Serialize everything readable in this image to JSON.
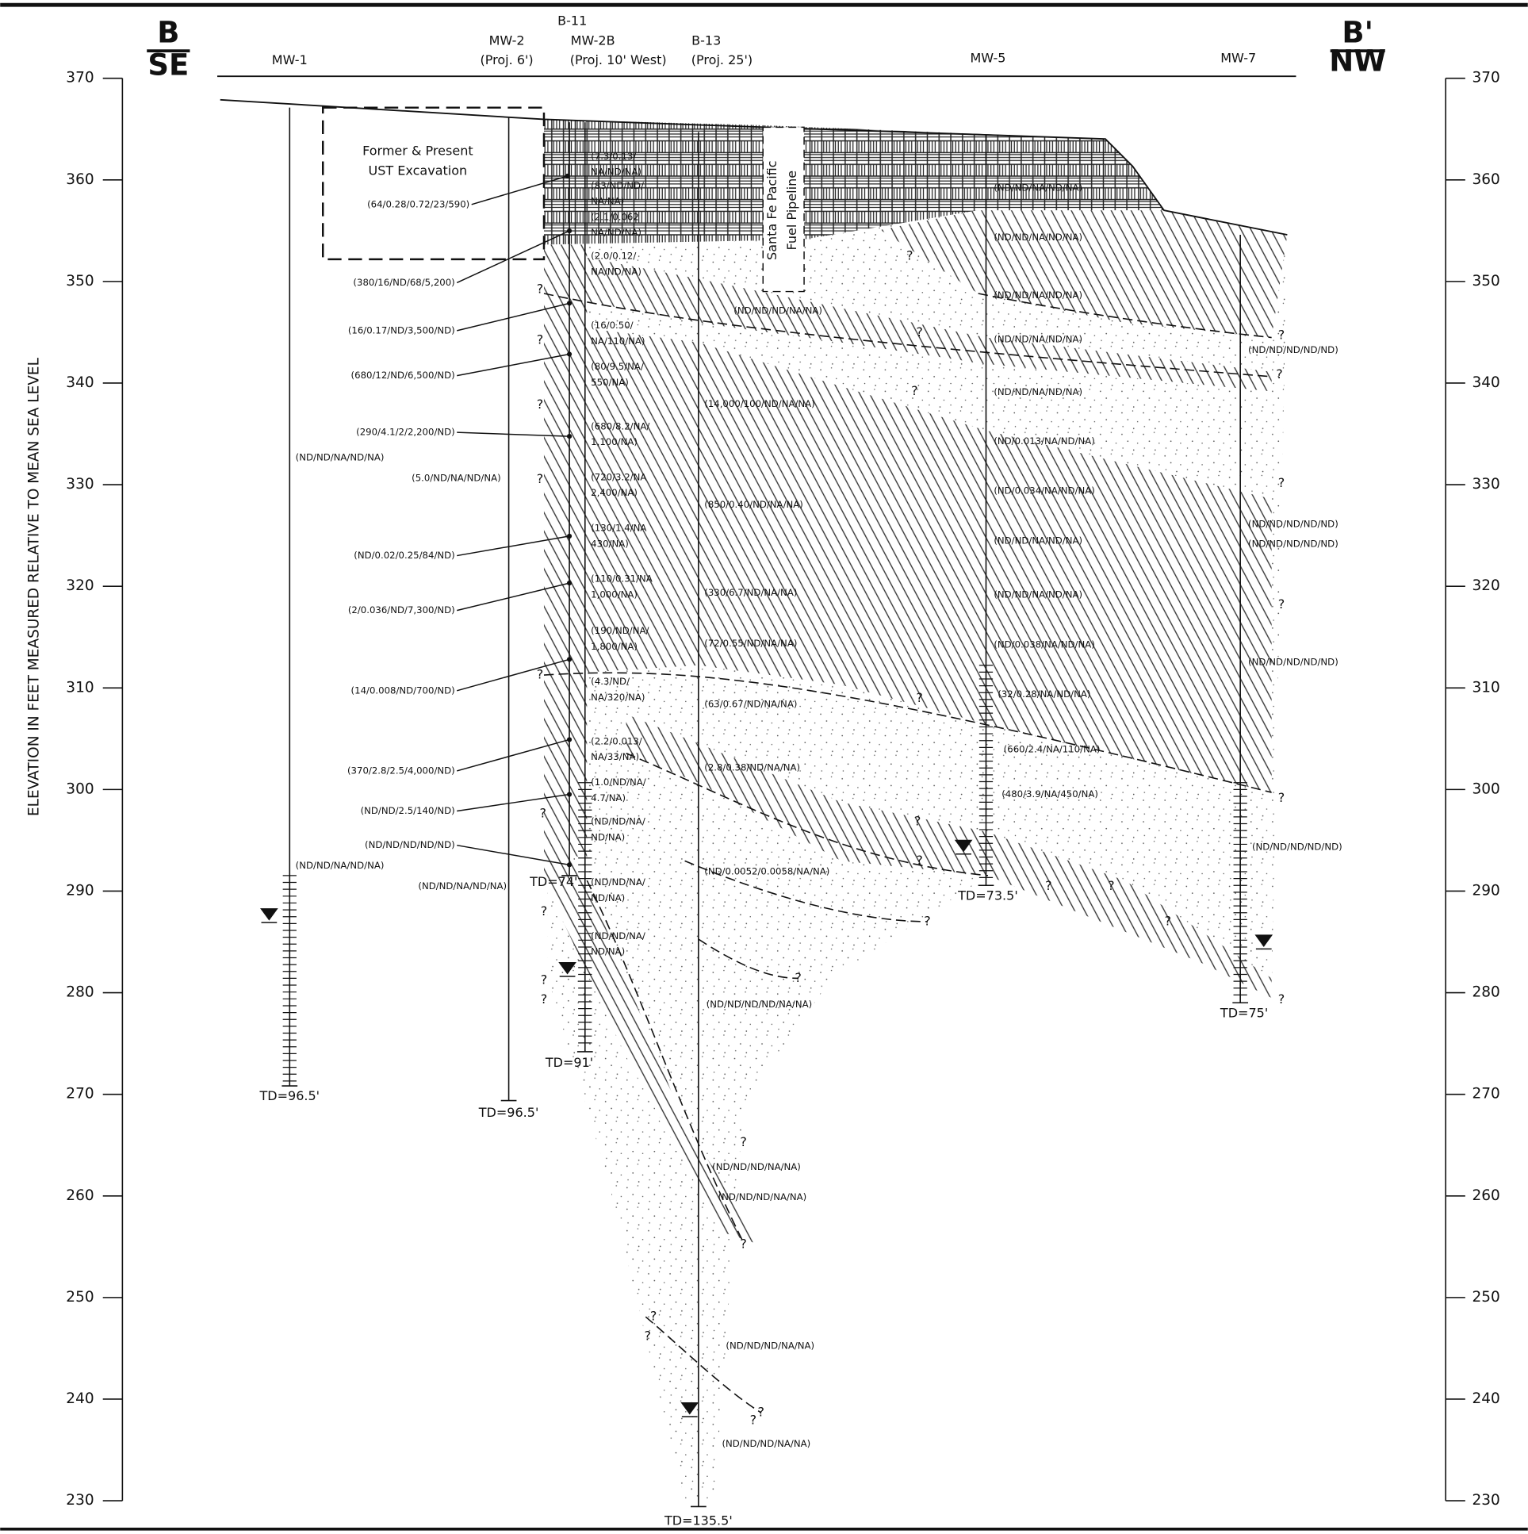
{
  "section": {
    "left_label": "B",
    "left_dir": "SE",
    "right_label": "B'",
    "right_dir": "NW"
  },
  "axis": {
    "title": "ELEVATION IN FEET MEASURED RELATIVE TO MEAN SEA LEVEL",
    "ylim": [
      230,
      370
    ],
    "ticks": [
      370,
      360,
      350,
      340,
      330,
      320,
      310,
      300,
      290,
      280,
      270,
      260,
      250,
      240,
      230
    ]
  },
  "wells": [
    {
      "name": "MW-1",
      "td": "TD=96.5'"
    },
    {
      "name": "MW-2",
      "note": "(Proj. 6')",
      "td": "TD=96.5'"
    },
    {
      "name": "MW-2B",
      "note": "(Proj. 10' West)",
      "td": "TD=74'"
    },
    {
      "name": "B-11",
      "td": "TD=91'"
    },
    {
      "name": "B-13",
      "note": "(Proj. 25')",
      "td": "TD=135.5'"
    },
    {
      "name": "MW-5",
      "td": "TD=73.5'"
    },
    {
      "name": "MW-7",
      "td": "TD=75'"
    }
  ],
  "excavation": [
    "Former & Present",
    "UST Excavation"
  ],
  "pipeline": [
    "Santa Fe Pacific",
    "Fuel Pipeline"
  ],
  "uncertain_mark": "?",
  "samples": [
    "(64/0.28/0.72/23/590)",
    "(380/16/ND/68/5,200)",
    "(16/0.17/ND/3,500/ND)",
    "(680/12/ND/6,500/ND)",
    "(290/4.1/2/2,200/ND)",
    "(ND/0.02/0.25/84/ND)",
    "(2/0.036/ND/7,300/ND)",
    "(14/0.008/ND/700/ND)",
    "(370/2.8/2.5/4,000/ND)",
    "(ND/ND/2.5/140/ND)",
    "(ND/ND/ND/ND/ND)",
    "(5.0/ND/NA/ND/NA)",
    "(ND/ND/NA/ND/NA)",
    "(ND/ND/NA/ND/NA)",
    "(ND/ND/NA/ND/NA)",
    [
      "(7.3/0.13/",
      "NA/ND/NA)"
    ],
    [
      "(83/ND/ND/",
      "NA/NA)"
    ],
    [
      "(2.1/0.062",
      "NA/ND/NA)"
    ],
    [
      "(2.0/0.12/",
      "NA/ND/NA)"
    ],
    [
      "(16/0.50/",
      "NA/110/NA)"
    ],
    [
      "(80/9.5/NA/",
      "550/NA)"
    ],
    [
      "(680/8.2/NA/",
      "1,100/NA)"
    ],
    [
      "(720/3.2/NA",
      "2,400/NA)"
    ],
    [
      "(130/1.4/NA",
      "430/NA)"
    ],
    [
      "(110/0.31/NA",
      "1,000/NA)"
    ],
    [
      "(190/ND/NA/",
      "1,800/NA)"
    ],
    [
      "(4.3/ND/",
      "NA/320/NA)"
    ],
    [
      "(2.2/0.013/",
      "NA/33/NA)"
    ],
    [
      "(1.0/ND/NA/",
      "4.7/NA)"
    ],
    [
      "(ND/ND/NA/",
      "ND/NA)"
    ],
    [
      "(ND/ND/NA/",
      "ND/NA)"
    ],
    [
      "(ND/ND/NA/",
      "ND/NA)"
    ],
    "(ND/ND/ND/NA/NA)",
    "(14,000/100/ND/NA/NA)",
    "(850/0.40/ND/NA/NA)",
    "(330/6.7/ND/NA/NA)",
    "(72/0.55/ND/NA/NA)",
    "(63/0.67/ND/NA/NA)",
    "(2.8/0.38/ND/NA/NA)",
    "(ND/0.0052/0.0058/NA/NA)",
    "(ND/ND/ND/ND/NA/NA)",
    "(ND/ND/ND/NA/NA)",
    "(ND/ND/ND/NA/NA)",
    "(ND/ND/ND/NA/NA)",
    "(ND/ND/ND/NA/NA)",
    "(ND/ND/NA/ND/NA)",
    "(ND/ND/NA/ND/NA)",
    "(ND/ND/NA/ND/NA)",
    "(ND/ND/NA/ND/NA)",
    "(ND/ND/NA/ND/NA)",
    "(ND/0.013/NA/ND/NA)",
    "(ND/0.034/NA/ND/NA)",
    "(ND/ND/NA/ND/NA)",
    "(ND/ND/NA/ND/NA)",
    "(ND/0.038/NA/ND/NA)",
    "(32/0.28/NA/ND/NA)",
    "(660/2.4/NA/110/NA)",
    "(480/3.9/NA/450/NA)",
    "(ND/ND/ND/ND/ND)",
    "(ND/ND/ND/ND/ND)",
    "(ND/ND/ND/ND/ND)",
    "(ND/ND/ND/ND/ND)",
    "(ND/ND/ND/ND/ND)"
  ]
}
